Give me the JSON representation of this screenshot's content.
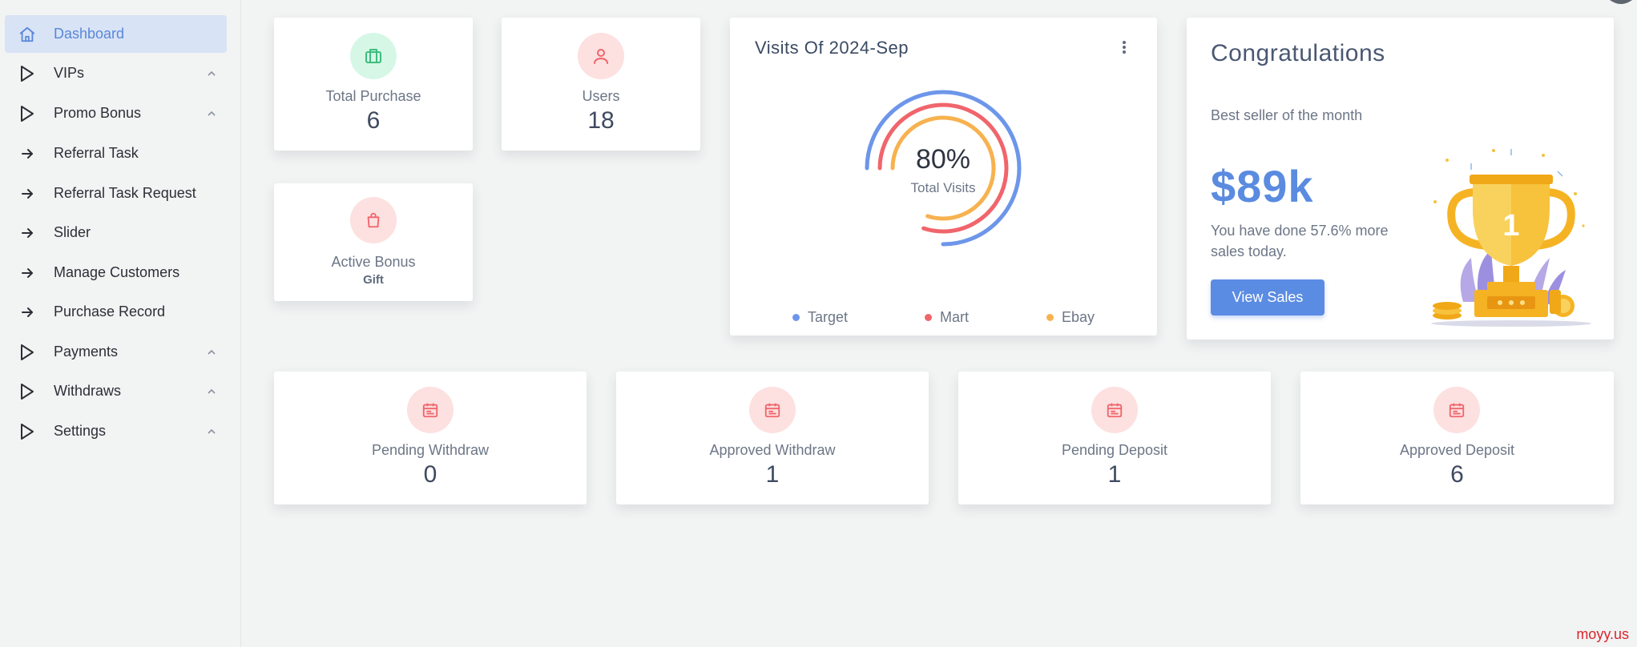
{
  "sidebar": {
    "items": [
      {
        "label": "Dashboard",
        "icon": "home-icon",
        "active": true,
        "expandable": false
      },
      {
        "label": "VIPs",
        "icon": "play-icon",
        "expandable": true
      },
      {
        "label": "Promo Bonus",
        "icon": "play-icon",
        "expandable": true
      },
      {
        "label": "Referral Task",
        "icon": "arrow-right-icon",
        "expandable": false
      },
      {
        "label": "Referral Task Request",
        "icon": "arrow-right-icon",
        "expandable": false
      },
      {
        "label": "Slider",
        "icon": "arrow-right-icon",
        "expandable": false
      },
      {
        "label": "Manage Customers",
        "icon": "arrow-right-icon",
        "expandable": false
      },
      {
        "label": "Purchase Record",
        "icon": "arrow-right-icon",
        "expandable": false
      },
      {
        "label": "Payments",
        "icon": "play-icon",
        "expandable": true
      },
      {
        "label": "Withdraws",
        "icon": "play-icon",
        "expandable": true
      },
      {
        "label": "Settings",
        "icon": "play-icon",
        "expandable": true
      }
    ]
  },
  "stats": {
    "total_purchase": {
      "label": "Total Purchase",
      "value": "6",
      "icon": "briefcase-icon"
    },
    "users": {
      "label": "Users",
      "value": "18",
      "icon": "user-icon"
    },
    "active_bonus": {
      "label": "Active Bonus",
      "value": "Gift",
      "icon": "shopping-bag-icon"
    }
  },
  "visits": {
    "title": "Visits Of 2024-Sep",
    "center_value": "80%",
    "center_label": "Total Visits"
  },
  "chart_data": {
    "type": "radialBar",
    "title": "Visits Of 2024-Sep",
    "series": [
      {
        "name": "Target",
        "value": 75,
        "color": "#6d96ea"
      },
      {
        "name": "Mart",
        "value": 80,
        "color": "#f0656b"
      },
      {
        "name": "Ebay",
        "value": 80,
        "color": "#f7b24f"
      }
    ],
    "legend": "bottom"
  },
  "congrats": {
    "title": "Congratulations",
    "subtitle": "Best seller of the month",
    "amount": "$89k",
    "text": "You have done 57.6% more sales today.",
    "button": "View Sales",
    "trophy_number": "1"
  },
  "bottom_stats": [
    {
      "label": "Pending Withdraw",
      "value": "0",
      "icon": "calendar-icon"
    },
    {
      "label": "Approved Withdraw",
      "value": "1",
      "icon": "calendar-icon"
    },
    {
      "label": "Pending Deposit",
      "value": "1",
      "icon": "calendar-icon"
    },
    {
      "label": "Approved Deposit",
      "value": "6",
      "icon": "calendar-icon"
    }
  ],
  "watermark": "moyy.us",
  "colors": {
    "accent": "#5b8ce3",
    "green_icon_bg": "#d6f7e6",
    "green_icon": "#3dbd7d",
    "red_icon_bg": "#fde0e0",
    "red_icon": "#f0656b"
  }
}
